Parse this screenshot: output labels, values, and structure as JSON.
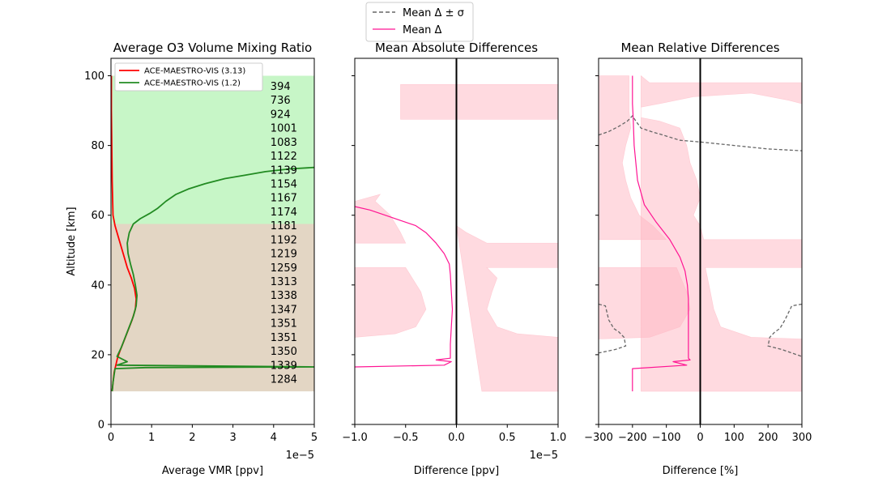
{
  "figure_legend": {
    "location": "top-center",
    "entries": [
      {
        "label": "Mean Δ ± σ",
        "color": "#666666",
        "style": "dashed"
      },
      {
        "label": "Mean Δ",
        "color": "#ff1493",
        "style": "solid"
      }
    ]
  },
  "chart_data": [
    {
      "type": "line",
      "title": "Average O3 Volume Mixing Ratio",
      "xlabel": "Average VMR [ppv]",
      "ylabel": "Altitude [km]",
      "xlim": [
        0,
        5
      ],
      "ylim": [
        0,
        105
      ],
      "x_multiplier": "1e−5",
      "xticks": [
        0,
        1,
        2,
        3,
        4,
        5
      ],
      "xtick_labels": [
        "0",
        "1",
        "2",
        "3",
        "4",
        "5"
      ],
      "yticks": [
        0,
        20,
        40,
        60,
        80,
        100
      ],
      "ytick_labels": [
        "0",
        "20",
        "40",
        "60",
        "80",
        "100"
      ],
      "legend_location": "top-left",
      "bands": [
        {
          "color": "#90ee90",
          "opacity": 0.5,
          "y": [
            9.5,
            100
          ]
        },
        {
          "color": "#ffb6c1",
          "opacity": 0.5,
          "y": [
            9.5,
            57.5
          ]
        }
      ],
      "series": [
        {
          "name": "ACE-MAESTRO-VIS (3.13)",
          "color": "#ff0000",
          "points": [
            [
              0.01,
              100
            ],
            [
              0.01,
              90
            ],
            [
              0.02,
              80
            ],
            [
              0.03,
              70
            ],
            [
              0.04,
              65
            ],
            [
              0.05,
              60
            ],
            [
              0.1,
              57
            ],
            [
              0.2,
              53
            ],
            [
              0.3,
              49
            ],
            [
              0.4,
              45
            ],
            [
              0.5,
              42
            ],
            [
              0.58,
              39
            ],
            [
              0.62,
              36
            ],
            [
              0.6,
              33
            ],
            [
              0.52,
              30
            ],
            [
              0.42,
              27
            ],
            [
              0.32,
              24
            ],
            [
              0.22,
              21
            ],
            [
              0.16,
              19
            ],
            [
              0.12,
              17
            ],
            [
              0.08,
              15
            ],
            [
              0.05,
              12
            ],
            [
              0.03,
              9.5
            ]
          ]
        },
        {
          "name": "ACE-MAESTRO-VIS (1.2)",
          "color": "#228b22",
          "points": [
            [
              5.0,
              73.7
            ],
            [
              4.4,
              73.3
            ],
            [
              3.8,
              72.5
            ],
            [
              3.3,
              71.5
            ],
            [
              2.8,
              70.5
            ],
            [
              2.3,
              69
            ],
            [
              1.9,
              67.5
            ],
            [
              1.6,
              66
            ],
            [
              1.35,
              64
            ],
            [
              1.15,
              62
            ],
            [
              0.95,
              60.5
            ],
            [
              0.72,
              59
            ],
            [
              0.55,
              57.5
            ],
            [
              0.45,
              55
            ],
            [
              0.4,
              52
            ],
            [
              0.42,
              49
            ],
            [
              0.48,
              46
            ],
            [
              0.55,
              43
            ],
            [
              0.6,
              40
            ],
            [
              0.64,
              37
            ],
            [
              0.62,
              34
            ],
            [
              0.55,
              31
            ],
            [
              0.45,
              28
            ],
            [
              0.35,
              25
            ],
            [
              0.25,
              22
            ],
            [
              0.15,
              19.5
            ],
            [
              0.4,
              18
            ],
            [
              0.15,
              17
            ],
            [
              5.0,
              16.5
            ],
            [
              0.85,
              16.3
            ],
            [
              0.1,
              16
            ],
            [
              0.05,
              12
            ],
            [
              0.03,
              9.5
            ]
          ]
        }
      ],
      "annotations": {
        "x": 4.0,
        "items": [
          {
            "text": "394",
            "y": 97
          },
          {
            "text": "736",
            "y": 93
          },
          {
            "text": "924",
            "y": 89
          },
          {
            "text": "1001",
            "y": 85
          },
          {
            "text": "1083",
            "y": 81
          },
          {
            "text": "1122",
            "y": 77
          },
          {
            "text": "1139",
            "y": 73
          },
          {
            "text": "1154",
            "y": 69
          },
          {
            "text": "1167",
            "y": 65
          },
          {
            "text": "1174",
            "y": 61
          },
          {
            "text": "1181",
            "y": 57
          },
          {
            "text": "1192",
            "y": 53
          },
          {
            "text": "1219",
            "y": 49
          },
          {
            "text": "1259",
            "y": 45
          },
          {
            "text": "1313",
            "y": 41
          },
          {
            "text": "1338",
            "y": 37
          },
          {
            "text": "1347",
            "y": 33
          },
          {
            "text": "1351",
            "y": 29
          },
          {
            "text": "1351",
            "y": 25
          },
          {
            "text": "1350",
            "y": 21
          },
          {
            "text": "1339",
            "y": 17
          },
          {
            "text": "1284",
            "y": 13
          }
        ]
      }
    },
    {
      "type": "line",
      "title": "Mean Absolute Differences",
      "xlabel": "Difference [ppv]",
      "xlim": [
        -1,
        1
      ],
      "ylim": [
        0,
        105
      ],
      "x_multiplier": "1e−5",
      "xticks": [
        -1,
        -0.5,
        0,
        0.5,
        1
      ],
      "xtick_labels": [
        "−1.0",
        "−0.5",
        "0.0",
        "0.5",
        "1.0"
      ],
      "yticks": [
        0,
        20,
        40,
        60,
        80,
        100
      ],
      "ytick_labels": [
        "",
        "",
        "",
        "",
        "",
        ""
      ],
      "vline_x": 0,
      "band": {
        "color": "#ffb6c1",
        "opacity": 0.5,
        "left": [
          [
            -1,
            97.5
          ],
          [
            -1,
            87.5
          ],
          [
            -1,
            64
          ],
          [
            -0.75,
            66
          ],
          [
            -0.8,
            64
          ],
          [
            -0.65,
            60
          ],
          [
            -0.55,
            55
          ],
          [
            -0.5,
            52
          ],
          [
            -1,
            52
          ],
          [
            -1,
            45
          ],
          [
            -0.5,
            45
          ],
          [
            -0.35,
            38
          ],
          [
            -0.3,
            33
          ],
          [
            -0.4,
            28
          ],
          [
            -0.6,
            26
          ],
          [
            -1,
            25
          ],
          [
            -1,
            9.5
          ]
        ],
        "right": [
          [
            -0.55,
            87.5
          ],
          [
            1,
            87.5
          ],
          [
            1,
            97.5
          ],
          [
            -0.55,
            97.5
          ]
        ],
        "right_main": [
          [
            0.25,
            9.5
          ],
          [
            1,
            9.5
          ],
          [
            1,
            25
          ],
          [
            0.6,
            26
          ],
          [
            0.4,
            28
          ],
          [
            0.3,
            33
          ],
          [
            0.35,
            38
          ],
          [
            0.4,
            42
          ],
          [
            0.3,
            45
          ],
          [
            1,
            45
          ],
          [
            1,
            52
          ],
          [
            0.3,
            52
          ],
          [
            0.1,
            55
          ],
          [
            0.0,
            57
          ]
        ]
      },
      "series": [
        {
          "name": "Mean Δ",
          "color": "#ff1493",
          "points": [
            [
              -1,
              62.5
            ],
            [
              -0.85,
              61.5
            ],
            [
              -0.7,
              60
            ],
            [
              -0.55,
              58.5
            ],
            [
              -0.4,
              57
            ],
            [
              -0.3,
              55
            ],
            [
              -0.2,
              52
            ],
            [
              -0.12,
              49
            ],
            [
              -0.07,
              46
            ],
            [
              -0.06,
              43
            ],
            [
              -0.05,
              38
            ],
            [
              -0.04,
              33
            ],
            [
              -0.05,
              28
            ],
            [
              -0.06,
              23
            ],
            [
              -0.06,
              19
            ],
            [
              -0.2,
              18.5
            ],
            [
              -0.05,
              18
            ],
            [
              -0.12,
              17
            ],
            [
              -1,
              16.5
            ]
          ]
        }
      ]
    },
    {
      "type": "line",
      "title": "Mean Relative Differences",
      "xlabel": "Difference [%]",
      "xlim": [
        -300,
        300
      ],
      "ylim": [
        0,
        105
      ],
      "xticks": [
        -300,
        -200,
        -100,
        0,
        100,
        200,
        300
      ],
      "xtick_labels": [
        "−300",
        "−200",
        "−100",
        "0",
        "100",
        "200",
        "300"
      ],
      "yticks": [
        0,
        20,
        40,
        60,
        80,
        100
      ],
      "ytick_labels": [
        "",
        "",
        "",
        "",
        "",
        ""
      ],
      "vline_x": 0,
      "band": {
        "color": "#ffb6c1",
        "opacity": 0.5,
        "left": [
          [
            -300,
            100
          ],
          [
            -210,
            100
          ],
          [
            -210,
            90
          ],
          [
            -205,
            85
          ],
          [
            -220,
            80
          ],
          [
            -230,
            75
          ],
          [
            -220,
            70
          ],
          [
            -205,
            65
          ],
          [
            -180,
            60
          ],
          [
            -140,
            57
          ],
          [
            -100,
            53
          ],
          [
            -300,
            53
          ],
          [
            -300,
            45
          ],
          [
            -70,
            45
          ],
          [
            -40,
            38
          ],
          [
            -30,
            33
          ],
          [
            -60,
            28
          ],
          [
            -150,
            25
          ],
          [
            -300,
            24.5
          ],
          [
            -300,
            9.5
          ]
        ],
        "right": [
          [
            -175,
            100
          ],
          [
            -150,
            98
          ],
          [
            300,
            98
          ],
          [
            300,
            92
          ],
          [
            260,
            93
          ],
          [
            150,
            95
          ],
          [
            -20,
            94
          ],
          [
            -120,
            92
          ],
          [
            -175,
            91
          ],
          [
            -175,
            88
          ],
          [
            -120,
            87
          ],
          [
            -60,
            85
          ],
          [
            -40,
            80
          ],
          [
            -30,
            75
          ],
          [
            -10,
            70
          ],
          [
            0,
            65
          ],
          [
            -20,
            60
          ],
          [
            0,
            57
          ],
          [
            10,
            53
          ],
          [
            300,
            53
          ],
          [
            300,
            45
          ],
          [
            15,
            45
          ],
          [
            30,
            38
          ],
          [
            40,
            33
          ],
          [
            60,
            28
          ],
          [
            150,
            25
          ],
          [
            300,
            24.5
          ],
          [
            300,
            9.5
          ],
          [
            -175,
            9.5
          ]
        ]
      },
      "dashed": [
        {
          "points": [
            [
              -300,
              83
            ],
            [
              -270,
              84
            ],
            [
              -240,
              85.5
            ],
            [
              -215,
              87
            ],
            [
              -200,
              88.5
            ],
            [
              -190,
              87
            ],
            [
              -175,
              85
            ],
            [
              -145,
              84
            ],
            [
              -110,
              83
            ],
            [
              -60,
              81.5
            ],
            [
              0,
              81
            ],
            [
              100,
              80
            ],
            [
              200,
              79
            ],
            [
              300,
              78.5
            ]
          ]
        },
        {
          "points": [
            [
              -300,
              34.5
            ],
            [
              -280,
              34
            ],
            [
              -270,
              30
            ],
            [
              -255,
              27.5
            ],
            [
              -240,
              26.5
            ],
            [
              -225,
              25
            ],
            [
              -220,
              22.5
            ],
            [
              -250,
              21.5
            ],
            [
              -300,
              20.5
            ]
          ]
        },
        {
          "points": [
            [
              300,
              34.5
            ],
            [
              270,
              34
            ],
            [
              250,
              30
            ],
            [
              235,
              27.5
            ],
            [
              220,
              26.5
            ],
            [
              205,
              25
            ],
            [
              200,
              22.5
            ],
            [
              240,
              21.5
            ],
            [
              300,
              19.5
            ]
          ]
        }
      ],
      "series": [
        {
          "name": "Mean Δ",
          "color": "#ff1493",
          "points": [
            [
              -200,
              100
            ],
            [
              -200,
              92
            ],
            [
              -198,
              88
            ],
            [
              -195,
              80
            ],
            [
              -185,
              70
            ],
            [
              -165,
              63
            ],
            [
              -130,
              58
            ],
            [
              -90,
              53
            ],
            [
              -60,
              48
            ],
            [
              -45,
              44
            ],
            [
              -38,
              40
            ],
            [
              -35,
              36
            ],
            [
              -35,
              30
            ],
            [
              -35,
              24
            ],
            [
              -35,
              19
            ],
            [
              -30,
              18.5
            ],
            [
              -80,
              18
            ],
            [
              -40,
              17
            ],
            [
              -200,
              16
            ],
            [
              -200,
              9.5
            ]
          ]
        }
      ]
    }
  ]
}
